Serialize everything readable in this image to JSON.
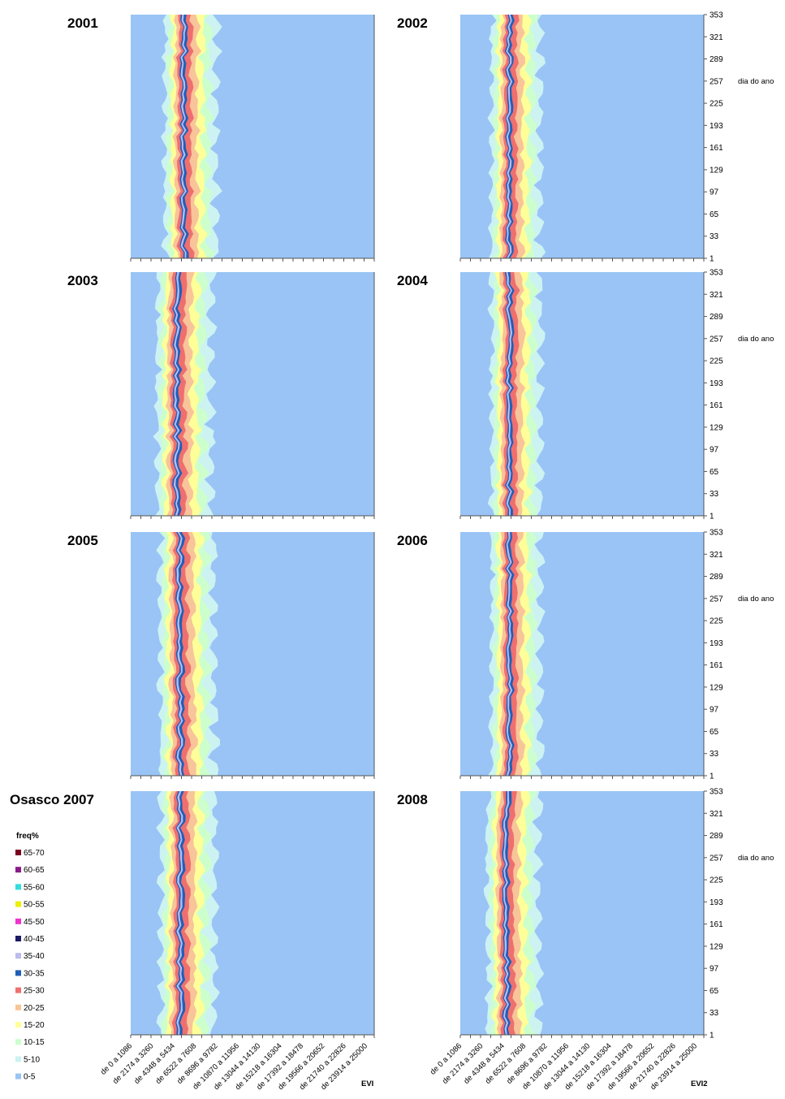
{
  "chart_data": {
    "type": "heatmap",
    "location_title": "Osasco 2007",
    "y_axis_label": "dia do ano",
    "y_ticks": [
      1,
      33,
      65,
      97,
      129,
      161,
      193,
      225,
      257,
      289,
      321,
      353
    ],
    "ylim": [
      1,
      353
    ],
    "x_categories": [
      "de 0 a 1086",
      "de 2174 a 3260",
      "de 4348 a 5434",
      "de 6522 a 7608",
      "de 8696 a 9782",
      "de 10870 a 11956",
      "de 13044 a 14130",
      "de 15218 a 16304",
      "de 17392 a 18478",
      "de 19566 a 20652",
      "de 21740 a 22826",
      "de 23914 a 25000"
    ],
    "legend": {
      "title": "freq%",
      "classes": [
        {
          "label": "65-70",
          "color": "#7a0020"
        },
        {
          "label": "60-65",
          "color": "#8a1a8a"
        },
        {
          "label": "55-60",
          "color": "#33dddd"
        },
        {
          "label": "50-55",
          "color": "#eeee00"
        },
        {
          "label": "45-50",
          "color": "#ee33cc"
        },
        {
          "label": "40-45",
          "color": "#1a1a66"
        },
        {
          "label": "35-40",
          "color": "#bbbbee"
        },
        {
          "label": "30-35",
          "color": "#1f5fb8"
        },
        {
          "label": "25-30",
          "color": "#ef6f6f"
        },
        {
          "label": "20-25",
          "color": "#f8c49a"
        },
        {
          "label": "15-20",
          "color": "#ffff99"
        },
        {
          "label": "10-15",
          "color": "#ccffcc"
        },
        {
          "label": "5-10",
          "color": "#ccf2f2"
        },
        {
          "label": "0-5",
          "color": "#99c4f5"
        }
      ]
    },
    "panels": [
      {
        "year": "2001",
        "index": "EVI",
        "peak_bin": 5400,
        "spread": 1.0,
        "x_label": ""
      },
      {
        "year": "2002",
        "index": "EVI2",
        "peak_bin": 5000,
        "spread": 0.95,
        "x_label": ""
      },
      {
        "year": "2003",
        "index": "EVI",
        "peak_bin": 4700,
        "spread": 1.05,
        "x_label": ""
      },
      {
        "year": "2004",
        "index": "EVI2",
        "peak_bin": 5000,
        "spread": 0.95,
        "x_label": ""
      },
      {
        "year": "2005",
        "index": "EVI",
        "peak_bin": 5000,
        "spread": 1.05,
        "x_label": ""
      },
      {
        "year": "2006",
        "index": "EVI2",
        "peak_bin": 5000,
        "spread": 0.95,
        "x_label": ""
      },
      {
        "year": "",
        "index": "EVI",
        "peak_bin": 5000,
        "spread": 1.05,
        "x_label": "EVI"
      },
      {
        "year": "2008",
        "index": "EVI2",
        "peak_bin": 4700,
        "spread": 1.0,
        "x_label": "EVI2"
      }
    ]
  }
}
